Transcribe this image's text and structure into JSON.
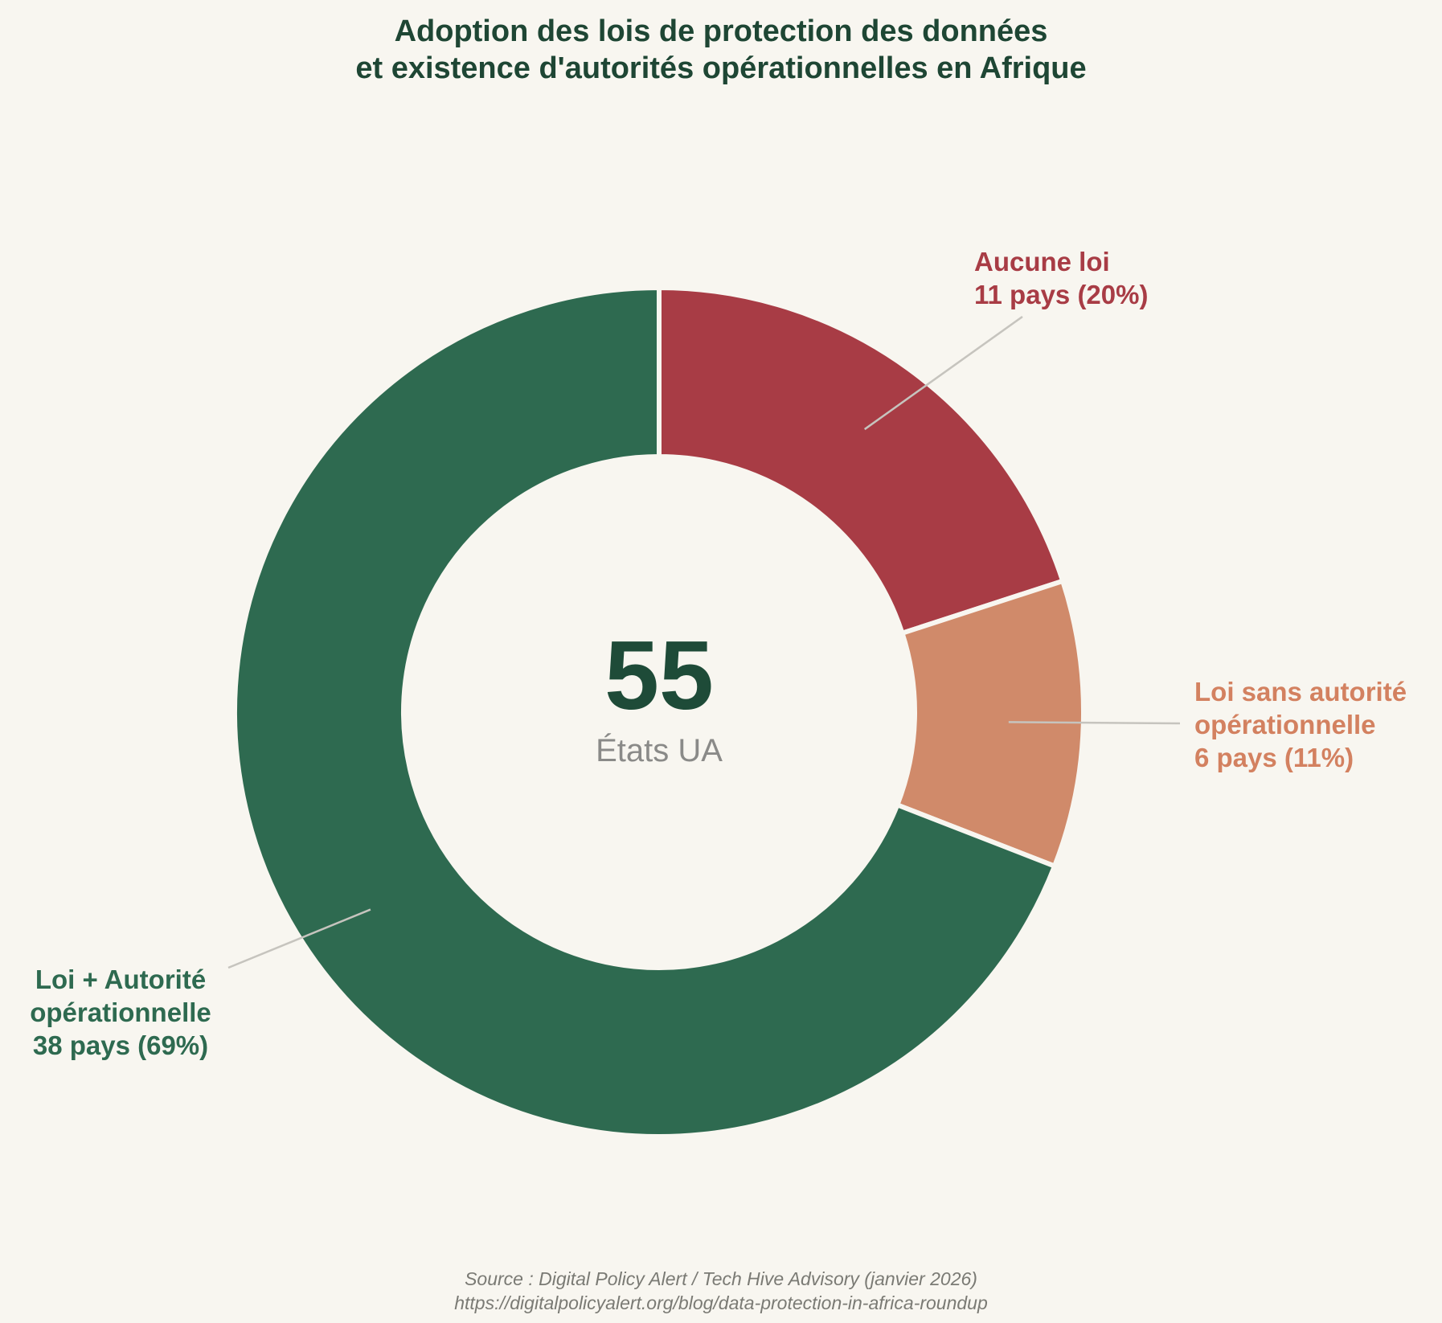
{
  "title": {
    "line1": "Adoption des lois de protection des données",
    "line2": "et existence d'autorités opérationnelles en Afrique"
  },
  "center": {
    "value": "55",
    "caption": "États UA"
  },
  "callouts": {
    "none": {
      "color": "#A83C45",
      "lines": [
        "Aucune loi",
        "11 pays (20%)"
      ]
    },
    "law_no_authority": {
      "color": "#D38160",
      "lines": [
        "Loi sans autorité",
        "opérationnelle",
        "6 pays (11%)"
      ]
    },
    "law_authority": {
      "color": "#2E6A50",
      "lines": [
        "Loi + Autorité",
        "opérationnelle",
        "38 pays (69%)"
      ]
    }
  },
  "source": {
    "line1": "Source : Digital Policy Alert / Tech Hive Advisory (janvier 2026)",
    "line2": "https://digitalpolicyalert.org/blog/data-protection-in-africa-roundup"
  },
  "colors": {
    "background": "#F8F6F0",
    "title_text": "#1E4634",
    "center_value_text": "#1E4B38",
    "center_caption_text": "#8A8A88",
    "leader_line": "#C6C4BE",
    "source_text": "#7A7A74",
    "slice_separator": "#F8F6F0"
  },
  "chart_data": {
    "type": "pie",
    "subtype": "donut",
    "title": "Adoption des lois de protection des données et existence d'autorités opérationnelles en Afrique",
    "total": 55,
    "total_label": "États UA",
    "start_angle_deg": 0,
    "direction": "clockwise",
    "donut_hole_ratio": 0.6,
    "legend_position": "callout-labels",
    "slices": [
      {
        "id": "none",
        "label": "Aucune loi",
        "value": 11,
        "percent": 20,
        "detail": "11 pays (20%)",
        "color": "#A83C45"
      },
      {
        "id": "law_no_authority",
        "label": "Loi sans autorité opérationnelle",
        "value": 6,
        "percent": 11,
        "detail": "6 pays (11%)",
        "color": "#D08A6A"
      },
      {
        "id": "law_authority",
        "label": "Loi + Autorité opérationnelle",
        "value": 38,
        "percent": 69,
        "detail": "38 pays (69%)",
        "color": "#2E6A50"
      }
    ]
  }
}
